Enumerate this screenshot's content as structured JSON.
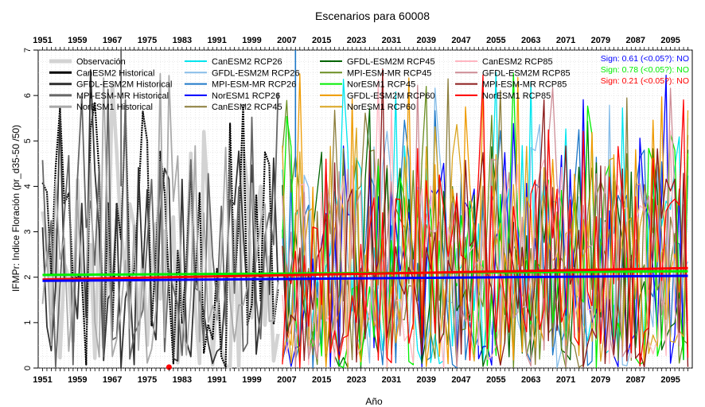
{
  "chart_data": {
    "type": "line",
    "title": "Escenarios  para 60008",
    "xlabel": "Año",
    "ylabel": "IFMPr: Indice Floración (pr_d35-50 /50)",
    "xlim": [
      1950,
      2100
    ],
    "ylim": [
      0,
      7
    ],
    "y_ticks": [
      0,
      1,
      2,
      3,
      4,
      5,
      6,
      7
    ],
    "x_tick_labels": [
      "1951",
      "1959",
      "1967",
      "1975",
      "1983",
      "1991",
      "1999",
      "2007",
      "2015",
      "2023",
      "2031",
      "2039",
      "2047",
      "2055",
      "2063",
      "2071",
      "2079",
      "2087",
      "2095"
    ],
    "grid": true,
    "legend_position": "top",
    "legend": [
      {
        "label": "Observación",
        "color": "#d3d3d3"
      },
      {
        "label": "CanESM2 Historical",
        "color": "#000000"
      },
      {
        "label": "GFDL-ESM2M Historical",
        "color": "#333333"
      },
      {
        "label": "MPI-ESM-MR Historical",
        "color": "#666666"
      },
      {
        "label": "NorESM1 Historical",
        "color": "#aaaaaa"
      },
      {
        "label": "CanESM2 RCP26",
        "color": "#00e5ee"
      },
      {
        "label": "GFDL-ESM2M RCP26",
        "color": "#87bde8"
      },
      {
        "label": "MPI-ESM-MR RCP26",
        "color": "#1e78c8"
      },
      {
        "label": "NorESM1 RCP26",
        "color": "#0000ff"
      },
      {
        "label": "CanESM2 RCP45",
        "color": "#8b7d3a"
      },
      {
        "label": "GFDL-ESM2M RCP45",
        "color": "#006400"
      },
      {
        "label": "MPI-ESM-MR RCP45",
        "color": "#6b8e23"
      },
      {
        "label": "NorESM1 RCP45",
        "color": "#00ee00"
      },
      {
        "label": "GFDL-ESM2M RCP60",
        "color": "#ee9a00"
      },
      {
        "label": "NorESM1 RCP60",
        "color": "#daa520"
      },
      {
        "label": "CanESM2 RCP85",
        "color": "#ffb6c1"
      },
      {
        "label": "GFDL-ESM2M RCP85",
        "color": "#cd8c95"
      },
      {
        "label": "MPI-ESM-MR RCP85",
        "color": "#8b1a1a"
      },
      {
        "label": "NorESM1 RCP85",
        "color": "#ff0000"
      }
    ],
    "significance": [
      {
        "text": "Sign: 0.61  (<0.05?): NO",
        "color": "#0000ff"
      },
      {
        "text": "Sign: 0.78  (<0.05?): NO",
        "color": "#00ee00"
      },
      {
        "text": "Sign: 0.21  (<0.05?): NO",
        "color": "#ff0000"
      }
    ],
    "trend_lines": [
      {
        "color": "#00ee00",
        "x": [
          1951,
          2099
        ],
        "y": [
          2.05,
          2.13
        ]
      },
      {
        "color": "#ff0000",
        "x": [
          1951,
          2099
        ],
        "y": [
          1.95,
          2.2
        ]
      },
      {
        "color": "#0000ff",
        "x": [
          1951,
          2099
        ],
        "y": [
          1.92,
          2.03
        ]
      }
    ],
    "observation_marker": {
      "x": 1980,
      "y": 0.02,
      "color": "#ff0000"
    }
  }
}
